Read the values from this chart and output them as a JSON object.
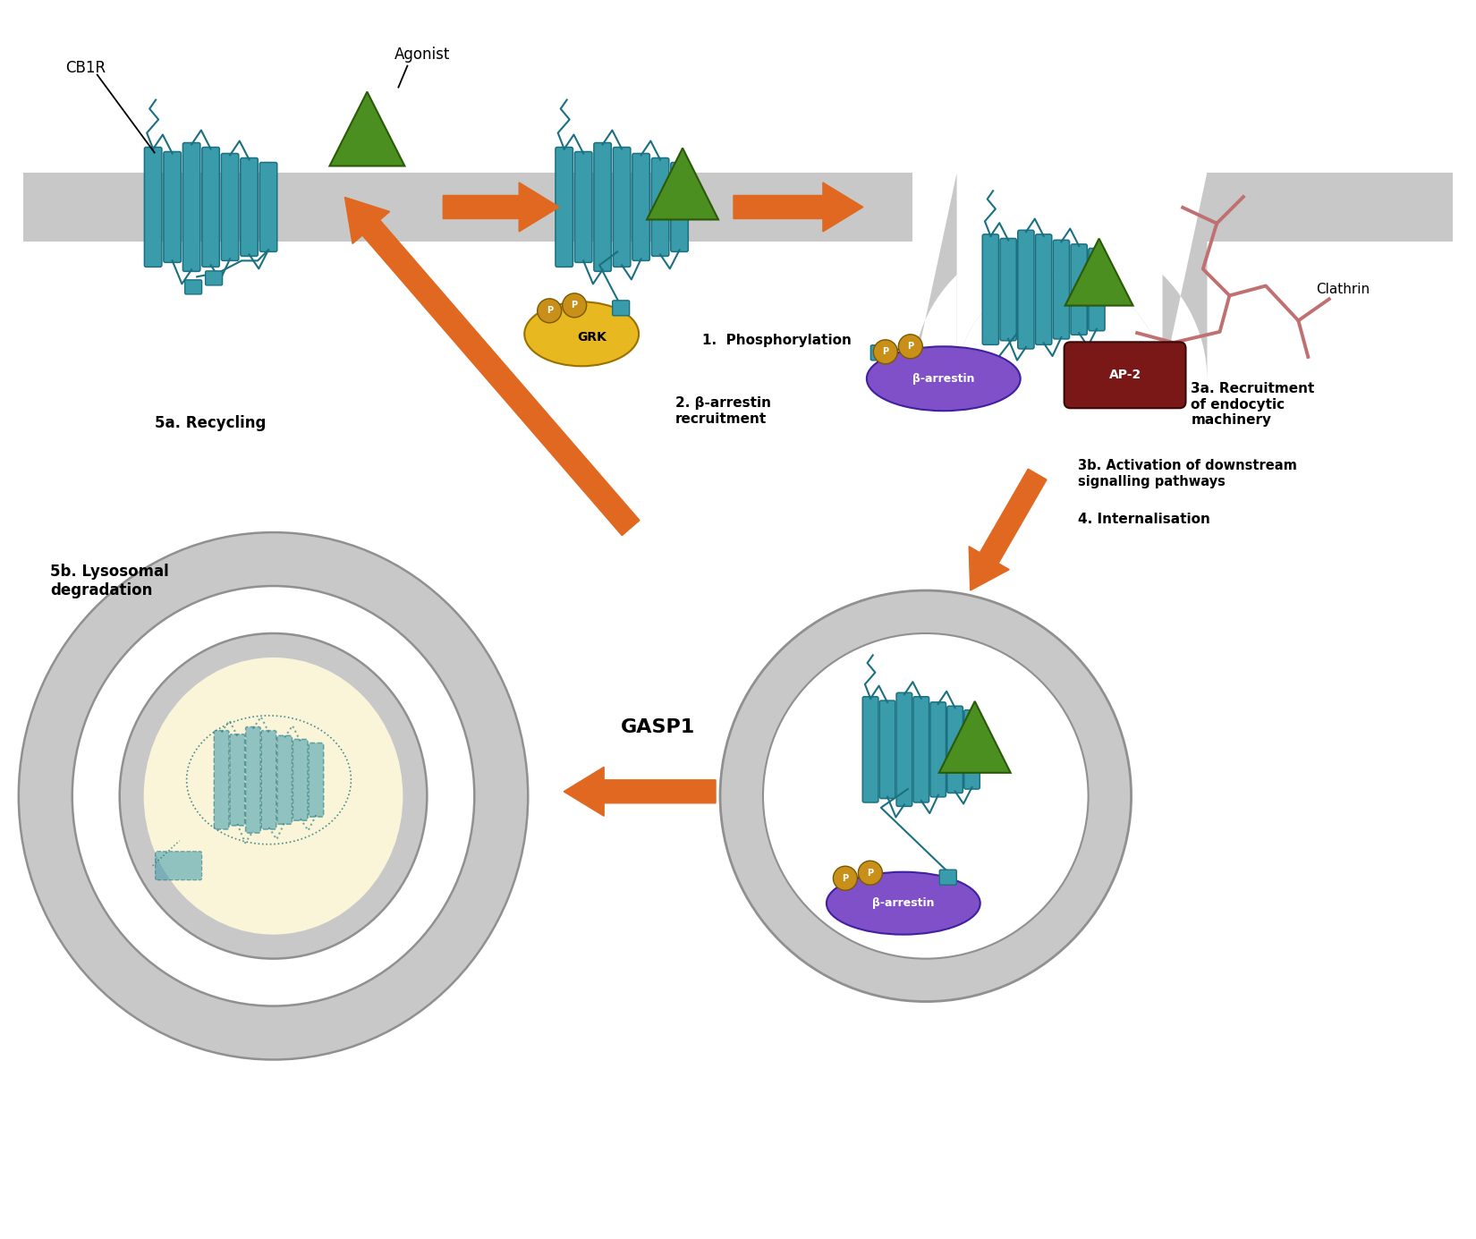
{
  "bg_color": "#ffffff",
  "teal": "#3a9bab",
  "teal_dark": "#1a7080",
  "orange": "#e06820",
  "green": "#4a8f20",
  "yellow": "#e8b820",
  "purple": "#8050c8",
  "dark_red": "#7a1818",
  "pink": "#c07070",
  "gray": "#c8c8c8",
  "cream": "#faf5d8",
  "gold": "#c89018",
  "white": "#ffffff",
  "labels": {
    "cb1r": "CB1R",
    "agonist": "Agonist",
    "phospho": "1.  Phosphorylation",
    "barr_recruit": "2. β-arrestin\nrecruitment",
    "recruit_endo": "3a. Recruitment\nof endocytic\nmachinery",
    "downstream": "3b. Activation of downstream\nsignalling pathways",
    "internalisation": "4. Internalisation",
    "recycling": "5a. Recycling",
    "lysosomal": "5b. Lysosomal\ndegradation",
    "gasp1": "GASP1",
    "grk": "GRK",
    "barr": "β-arrestin",
    "ap2": "AP-2",
    "clathrin": "Clathrin"
  }
}
